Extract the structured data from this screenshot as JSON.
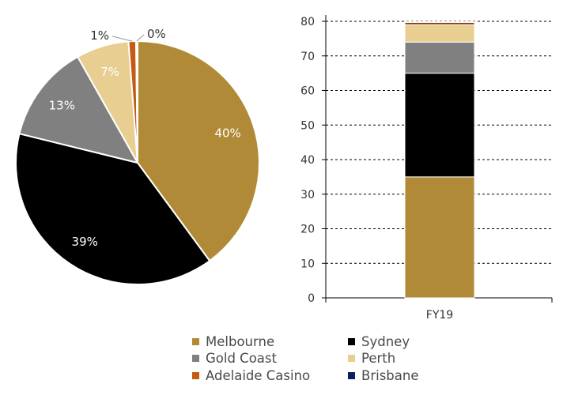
{
  "chart_data": [
    {
      "type": "pie",
      "slices": [
        {
          "name": "Melbourne",
          "value": 40,
          "label": "40%",
          "color": "#B08A36"
        },
        {
          "name": "Sydney",
          "value": 39,
          "label": "39%",
          "color": "#000000"
        },
        {
          "name": "Gold Coast",
          "value": 13,
          "label": "13%",
          "color": "#808080"
        },
        {
          "name": "Perth",
          "value": 7,
          "label": "7%",
          "color": "#E8CE91"
        },
        {
          "name": "Adelaide Casino",
          "value": 1,
          "label": "1%",
          "color": "#C55A11"
        },
        {
          "name": "Brisbane",
          "value": 0.2,
          "label": "0%",
          "color": "#0B1F5C"
        }
      ]
    },
    {
      "type": "bar",
      "stacked": true,
      "categories": [
        "FY19"
      ],
      "ylim": [
        0,
        80
      ],
      "yticks": [
        "0",
        "10",
        "20",
        "30",
        "40",
        "50",
        "60",
        "70",
        "80"
      ],
      "grid": true,
      "series": [
        {
          "name": "Melbourne",
          "values": [
            35
          ],
          "color": "#B08A36"
        },
        {
          "name": "Sydney",
          "values": [
            30
          ],
          "color": "#000000"
        },
        {
          "name": "Gold Coast",
          "values": [
            9
          ],
          "color": "#808080"
        },
        {
          "name": "Perth",
          "values": [
            5
          ],
          "color": "#E8CE91"
        },
        {
          "name": "Adelaide Casino",
          "values": [
            0.7
          ],
          "color": "#8B4513"
        },
        {
          "name": "Brisbane",
          "values": [
            0.2
          ],
          "color": "#0B1F5C"
        }
      ]
    }
  ],
  "legend": [
    {
      "label": "Melbourne",
      "color": "#B08A36"
    },
    {
      "label": "Sydney",
      "color": "#000000"
    },
    {
      "label": "Gold Coast",
      "color": "#808080"
    },
    {
      "label": "Perth",
      "color": "#E8CE91"
    },
    {
      "label": "Adelaide Casino",
      "color": "#C55A11"
    },
    {
      "label": "Brisbane",
      "color": "#0B1F5C"
    }
  ]
}
